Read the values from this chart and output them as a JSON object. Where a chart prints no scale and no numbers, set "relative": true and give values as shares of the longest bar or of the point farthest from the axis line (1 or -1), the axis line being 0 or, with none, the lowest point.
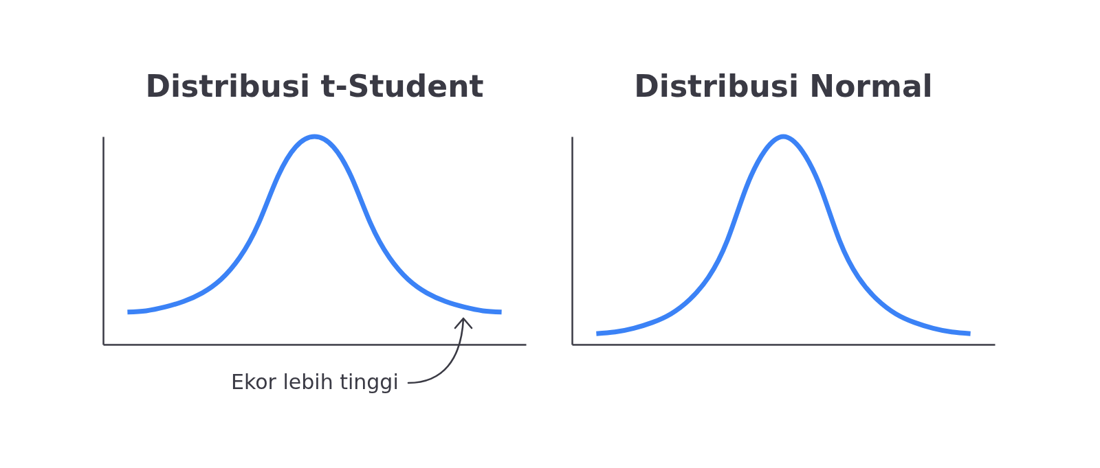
{
  "chart_data": [
    {
      "type": "line",
      "title": "Distribusi t-Student",
      "relative": true,
      "categories": [
        null,
        null,
        null,
        null,
        null,
        null,
        null,
        null,
        null,
        null,
        null,
        null,
        null,
        null,
        null,
        null,
        null,
        null,
        null,
        null,
        null
      ],
      "series": [
        {
          "color": "#3b82f6",
          "values": [
            0.156,
            0.162,
            0.18,
            0.207,
            0.248,
            0.313,
            0.418,
            0.581,
            0.8,
            0.951,
            1,
            0.951,
            0.8,
            0.581,
            0.418,
            0.313,
            0.248,
            0.207,
            0.18,
            0.162,
            0.156
          ]
        }
      ],
      "annotations": [
        "Ekor lebih tinggi"
      ]
    },
    {
      "type": "line",
      "title": "Distribusi Normal",
      "relative": true,
      "categories": [
        null,
        null,
        null,
        null,
        null,
        null,
        null,
        null,
        null,
        null,
        null,
        null,
        null,
        null,
        null,
        null,
        null,
        null,
        null,
        null,
        null
      ],
      "series": [
        {
          "color": "#3b82f6",
          "values": [
            0.052,
            0.06,
            0.078,
            0.106,
            0.148,
            0.217,
            0.324,
            0.5,
            0.752,
            0.931,
            1,
            0.931,
            0.752,
            0.5,
            0.324,
            0.217,
            0.148,
            0.106,
            0.078,
            0.06,
            0.052
          ]
        }
      ]
    }
  ]
}
